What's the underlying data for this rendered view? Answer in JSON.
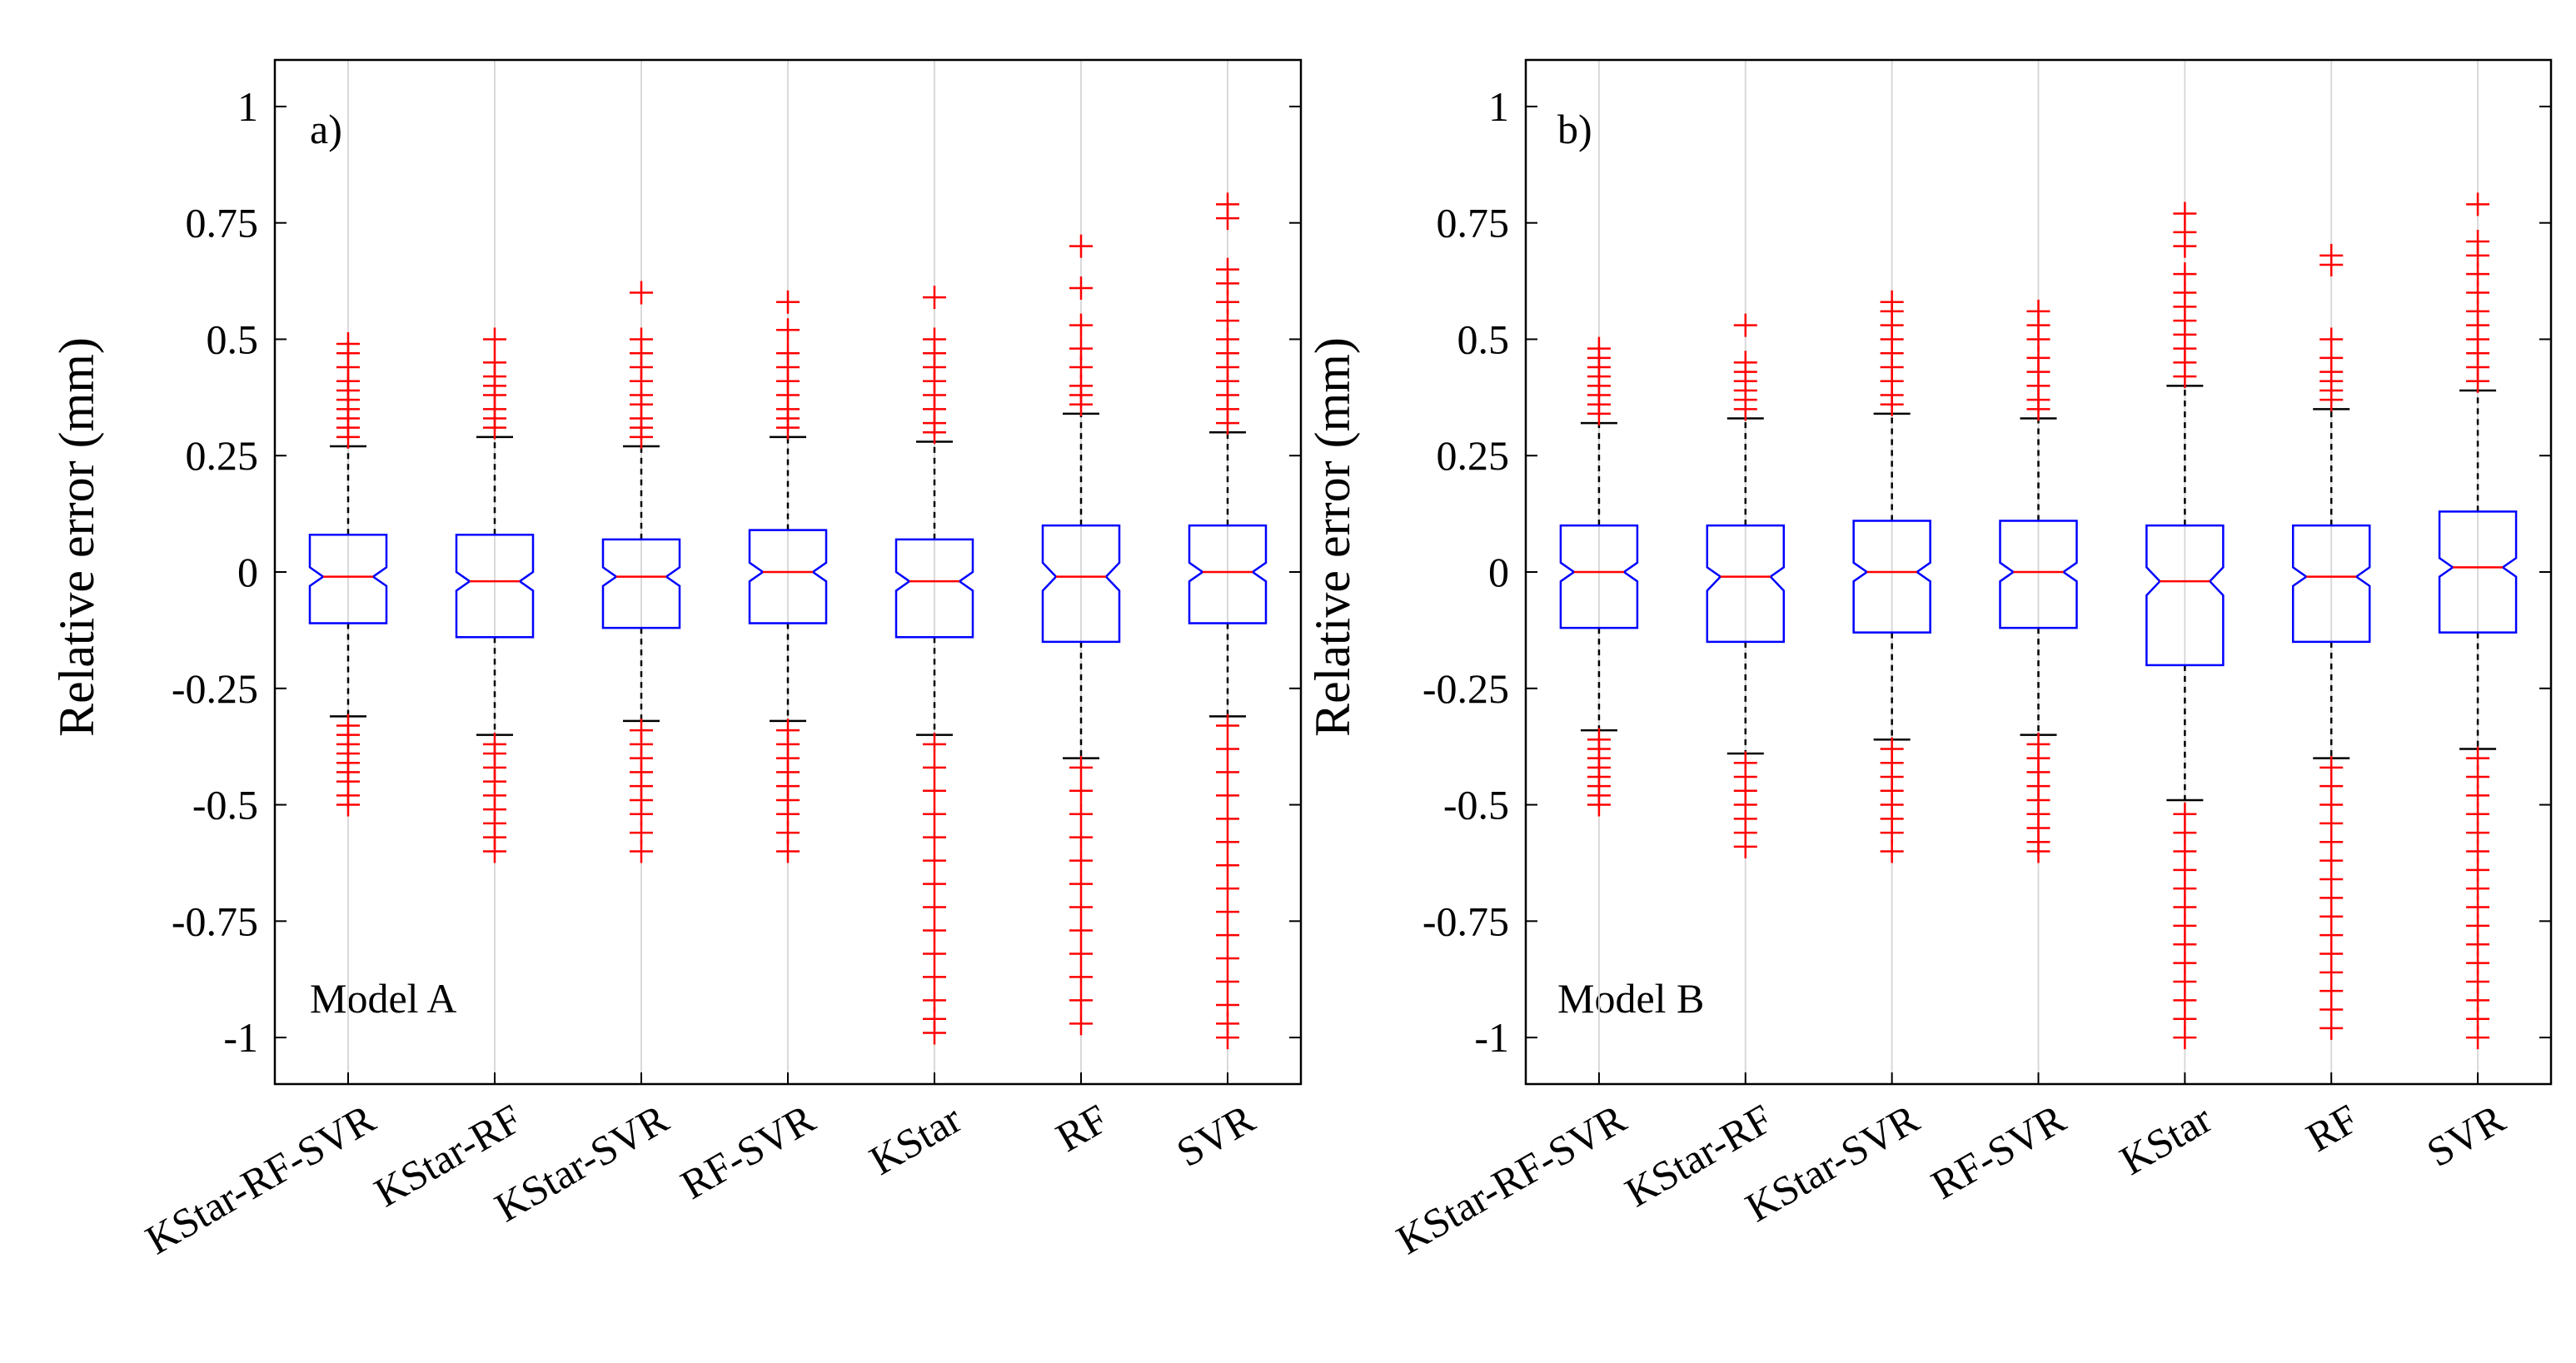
{
  "colors": {
    "box": "#0000ff",
    "median": "#ff0000",
    "outlier": "#ff0000",
    "whisker": "#000000",
    "grid": "#d9d9d9"
  },
  "chart_data": [
    {
      "type": "boxplot",
      "panel_label": "a)",
      "annotation": "Model A",
      "ylabel": "Relative error (mm)",
      "ylim": [
        -1.1,
        1.1
      ],
      "yticks": [
        1,
        0.75,
        0.5,
        0.25,
        0,
        -0.25,
        -0.5,
        -0.75,
        -1
      ],
      "ytick_labels": [
        "1",
        "0.75",
        "0.5",
        "0.25",
        "0",
        "-0.25",
        "-0.5",
        "-0.75",
        "-1"
      ],
      "grid_x": true,
      "notched": true,
      "categories": [
        "KStar-RF-SVR",
        "KStar-RF",
        "KStar-SVR",
        "RF-SVR",
        "KStar",
        "RF",
        "SVR"
      ],
      "boxes": [
        {
          "q1": -0.11,
          "median": -0.01,
          "q3": 0.08,
          "whisker_low": -0.31,
          "whisker_high": 0.27,
          "notch_low": -0.03,
          "notch_high": 0.01,
          "outliers_high": [
            0.29,
            0.31,
            0.33,
            0.35,
            0.37,
            0.39,
            0.41,
            0.44,
            0.47,
            0.49
          ],
          "outliers_low": [
            -0.33,
            -0.35,
            -0.37,
            -0.39,
            -0.41,
            -0.43,
            -0.45,
            -0.48,
            -0.5
          ]
        },
        {
          "q1": -0.14,
          "median": -0.02,
          "q3": 0.08,
          "whisker_low": -0.35,
          "whisker_high": 0.29,
          "notch_low": -0.04,
          "notch_high": 0,
          "outliers_high": [
            0.31,
            0.33,
            0.35,
            0.38,
            0.4,
            0.42,
            0.45,
            0.5
          ],
          "outliers_low": [
            -0.37,
            -0.39,
            -0.42,
            -0.45,
            -0.48,
            -0.51,
            -0.54,
            -0.57,
            -0.6
          ]
        },
        {
          "q1": -0.12,
          "median": -0.01,
          "q3": 0.07,
          "whisker_low": -0.32,
          "whisker_high": 0.27,
          "notch_low": -0.03,
          "notch_high": 0.01,
          "outliers_high": [
            0.29,
            0.31,
            0.33,
            0.36,
            0.38,
            0.41,
            0.44,
            0.47,
            0.5,
            0.6
          ],
          "outliers_low": [
            -0.34,
            -0.37,
            -0.4,
            -0.43,
            -0.46,
            -0.49,
            -0.52,
            -0.56,
            -0.6
          ]
        },
        {
          "q1": -0.11,
          "median": 0,
          "q3": 0.09,
          "whisker_low": -0.32,
          "whisker_high": 0.29,
          "notch_low": -0.02,
          "notch_high": 0.02,
          "outliers_high": [
            0.31,
            0.33,
            0.35,
            0.38,
            0.41,
            0.44,
            0.47,
            0.52,
            0.58
          ],
          "outliers_low": [
            -0.34,
            -0.37,
            -0.4,
            -0.43,
            -0.46,
            -0.49,
            -0.52,
            -0.56,
            -0.6
          ]
        },
        {
          "q1": -0.14,
          "median": -0.02,
          "q3": 0.07,
          "whisker_low": -0.35,
          "whisker_high": 0.28,
          "notch_low": -0.04,
          "notch_high": 0,
          "outliers_high": [
            0.3,
            0.32,
            0.35,
            0.38,
            0.41,
            0.44,
            0.47,
            0.5,
            0.59
          ],
          "outliers_low": [
            -0.37,
            -0.42,
            -0.47,
            -0.52,
            -0.57,
            -0.62,
            -0.67,
            -0.72,
            -0.77,
            -0.82,
            -0.87,
            -0.92,
            -0.96,
            -0.99
          ]
        },
        {
          "q1": -0.15,
          "median": -0.01,
          "q3": 0.1,
          "whisker_low": -0.4,
          "whisker_high": 0.34,
          "notch_low": -0.04,
          "notch_high": 0.02,
          "outliers_high": [
            0.36,
            0.38,
            0.4,
            0.44,
            0.48,
            0.53,
            0.61,
            0.7
          ],
          "outliers_low": [
            -0.42,
            -0.47,
            -0.52,
            -0.57,
            -0.62,
            -0.67,
            -0.72,
            -0.77,
            -0.82,
            -0.87,
            -0.92,
            -0.97
          ]
        },
        {
          "q1": -0.11,
          "median": 0,
          "q3": 0.1,
          "whisker_low": -0.31,
          "whisker_high": 0.3,
          "notch_low": -0.02,
          "notch_high": 0.02,
          "outliers_high": [
            0.32,
            0.35,
            0.38,
            0.41,
            0.44,
            0.47,
            0.5,
            0.54,
            0.58,
            0.62,
            0.65,
            0.76,
            0.79
          ],
          "outliers_low": [
            -0.33,
            -0.38,
            -0.43,
            -0.48,
            -0.53,
            -0.58,
            -0.63,
            -0.68,
            -0.73,
            -0.78,
            -0.83,
            -0.88,
            -0.93,
            -0.97,
            -1.0
          ]
        }
      ]
    },
    {
      "type": "boxplot",
      "panel_label": "b)",
      "annotation": "Model B",
      "ylabel": "Relative error (mm)",
      "ylim": [
        -1.1,
        1.1
      ],
      "yticks": [
        1,
        0.75,
        0.5,
        0.25,
        0,
        -0.25,
        -0.5,
        -0.75,
        -1
      ],
      "ytick_labels": [
        "1",
        "0.75",
        "0.5",
        "0.25",
        "0",
        "-0.25",
        "-0.5",
        "-0.75",
        "-1"
      ],
      "grid_x": true,
      "notched": true,
      "categories": [
        "KStar-RF-SVR",
        "KStar-RF",
        "KStar-SVR",
        "RF-SVR",
        "KStar",
        "RF",
        "SVR"
      ],
      "boxes": [
        {
          "q1": -0.12,
          "median": 0,
          "q3": 0.1,
          "whisker_low": -0.34,
          "whisker_high": 0.32,
          "notch_low": -0.02,
          "notch_high": 0.02,
          "outliers_high": [
            0.34,
            0.36,
            0.38,
            0.4,
            0.42,
            0.44,
            0.46,
            0.48
          ],
          "outliers_low": [
            -0.36,
            -0.38,
            -0.4,
            -0.42,
            -0.44,
            -0.46,
            -0.48,
            -0.5
          ]
        },
        {
          "q1": -0.15,
          "median": -0.01,
          "q3": 0.1,
          "whisker_low": -0.39,
          "whisker_high": 0.33,
          "notch_low": -0.04,
          "notch_high": 0.01,
          "outliers_high": [
            0.35,
            0.37,
            0.39,
            0.41,
            0.43,
            0.45,
            0.53
          ],
          "outliers_low": [
            -0.41,
            -0.44,
            -0.47,
            -0.5,
            -0.53,
            -0.56,
            -0.59
          ]
        },
        {
          "q1": -0.13,
          "median": 0,
          "q3": 0.11,
          "whisker_low": -0.36,
          "whisker_high": 0.34,
          "notch_low": -0.02,
          "notch_high": 0.02,
          "outliers_high": [
            0.36,
            0.38,
            0.41,
            0.44,
            0.47,
            0.5,
            0.53,
            0.56,
            0.58
          ],
          "outliers_low": [
            -0.38,
            -0.41,
            -0.44,
            -0.47,
            -0.5,
            -0.53,
            -0.56,
            -0.6
          ]
        },
        {
          "q1": -0.12,
          "median": 0,
          "q3": 0.11,
          "whisker_low": -0.35,
          "whisker_high": 0.33,
          "notch_low": -0.02,
          "notch_high": 0.02,
          "outliers_high": [
            0.35,
            0.37,
            0.4,
            0.43,
            0.46,
            0.5,
            0.53,
            0.56
          ],
          "outliers_low": [
            -0.37,
            -0.4,
            -0.43,
            -0.46,
            -0.49,
            -0.52,
            -0.55,
            -0.58,
            -0.6
          ]
        },
        {
          "q1": -0.2,
          "median": -0.02,
          "q3": 0.1,
          "whisker_low": -0.49,
          "whisker_high": 0.4,
          "notch_low": -0.05,
          "notch_high": 0.01,
          "outliers_high": [
            0.42,
            0.45,
            0.48,
            0.51,
            0.54,
            0.57,
            0.6,
            0.64,
            0.7,
            0.73,
            0.77
          ],
          "outliers_low": [
            -0.52,
            -0.56,
            -0.6,
            -0.64,
            -0.68,
            -0.72,
            -0.76,
            -0.8,
            -0.84,
            -0.88,
            -0.92,
            -0.96,
            -1.0
          ]
        },
        {
          "q1": -0.15,
          "median": -0.01,
          "q3": 0.1,
          "whisker_low": -0.4,
          "whisker_high": 0.35,
          "notch_low": -0.03,
          "notch_high": 0.01,
          "outliers_high": [
            0.37,
            0.39,
            0.41,
            0.43,
            0.46,
            0.5,
            0.66,
            0.68
          ],
          "outliers_low": [
            -0.42,
            -0.46,
            -0.5,
            -0.54,
            -0.58,
            -0.62,
            -0.66,
            -0.7,
            -0.74,
            -0.78,
            -0.82,
            -0.86,
            -0.9,
            -0.94,
            -0.98
          ]
        },
        {
          "q1": -0.13,
          "median": 0.01,
          "q3": 0.13,
          "whisker_low": -0.38,
          "whisker_high": 0.39,
          "notch_low": -0.01,
          "notch_high": 0.03,
          "outliers_high": [
            0.41,
            0.44,
            0.47,
            0.5,
            0.53,
            0.56,
            0.6,
            0.64,
            0.68,
            0.71,
            0.79
          ],
          "outliers_low": [
            -0.4,
            -0.44,
            -0.48,
            -0.52,
            -0.56,
            -0.6,
            -0.64,
            -0.68,
            -0.72,
            -0.76,
            -0.8,
            -0.84,
            -0.88,
            -0.92,
            -0.96,
            -1.0
          ]
        }
      ]
    }
  ]
}
